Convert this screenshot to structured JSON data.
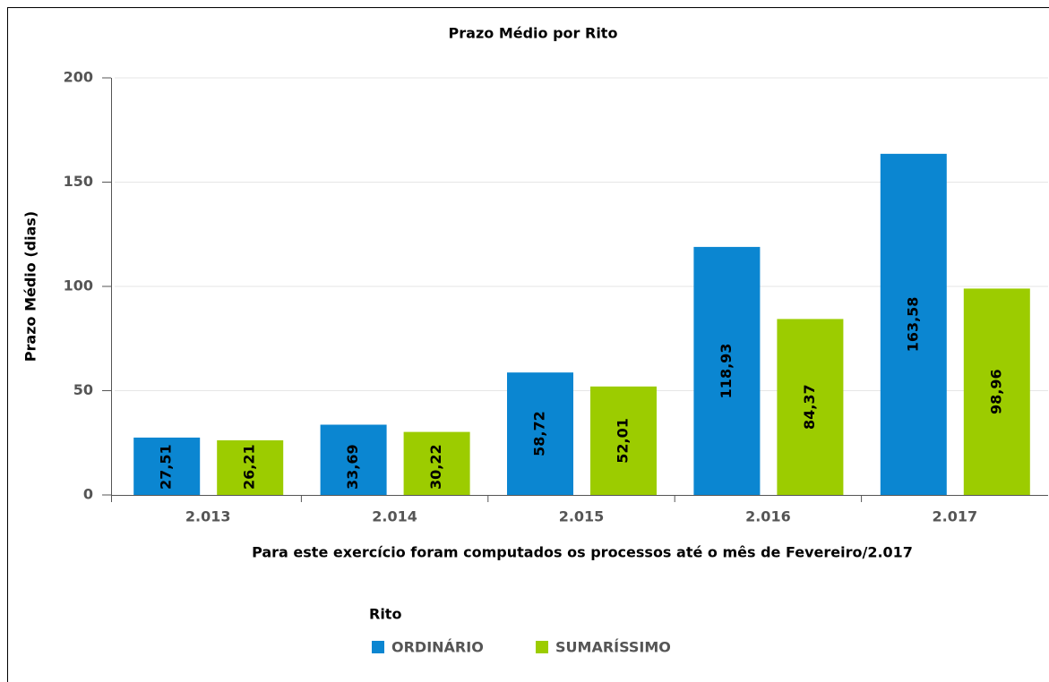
{
  "chart_data": {
    "type": "bar",
    "title": "Prazo Médio por Rito",
    "ylabel": "Prazo Médio (dias)",
    "xlabel": "Para este exercício foram computados os processos até o mês de Fevereiro/2.017",
    "legend_title": "Rito",
    "categories": [
      "2.013",
      "2.014",
      "2.015",
      "2.016",
      "2.017"
    ],
    "series": [
      {
        "name": "ORDINÁRIO",
        "color": "#0b86d1",
        "values": [
          27.51,
          33.69,
          58.72,
          118.93,
          163.58
        ],
        "value_labels": [
          "27,51",
          "33,69",
          "58,72",
          "118,93",
          "163,58"
        ]
      },
      {
        "name": "SUMARÍSSIMO",
        "color": "#9ccc00",
        "values": [
          26.21,
          30.22,
          52.01,
          84.37,
          98.96
        ],
        "value_labels": [
          "26,21",
          "30,22",
          "52,01",
          "84,37",
          "98,96"
        ]
      }
    ],
    "ylim": [
      0,
      200
    ],
    "yticks": [
      0,
      50,
      100,
      150,
      200
    ],
    "grid": true,
    "legend": "bottom"
  }
}
